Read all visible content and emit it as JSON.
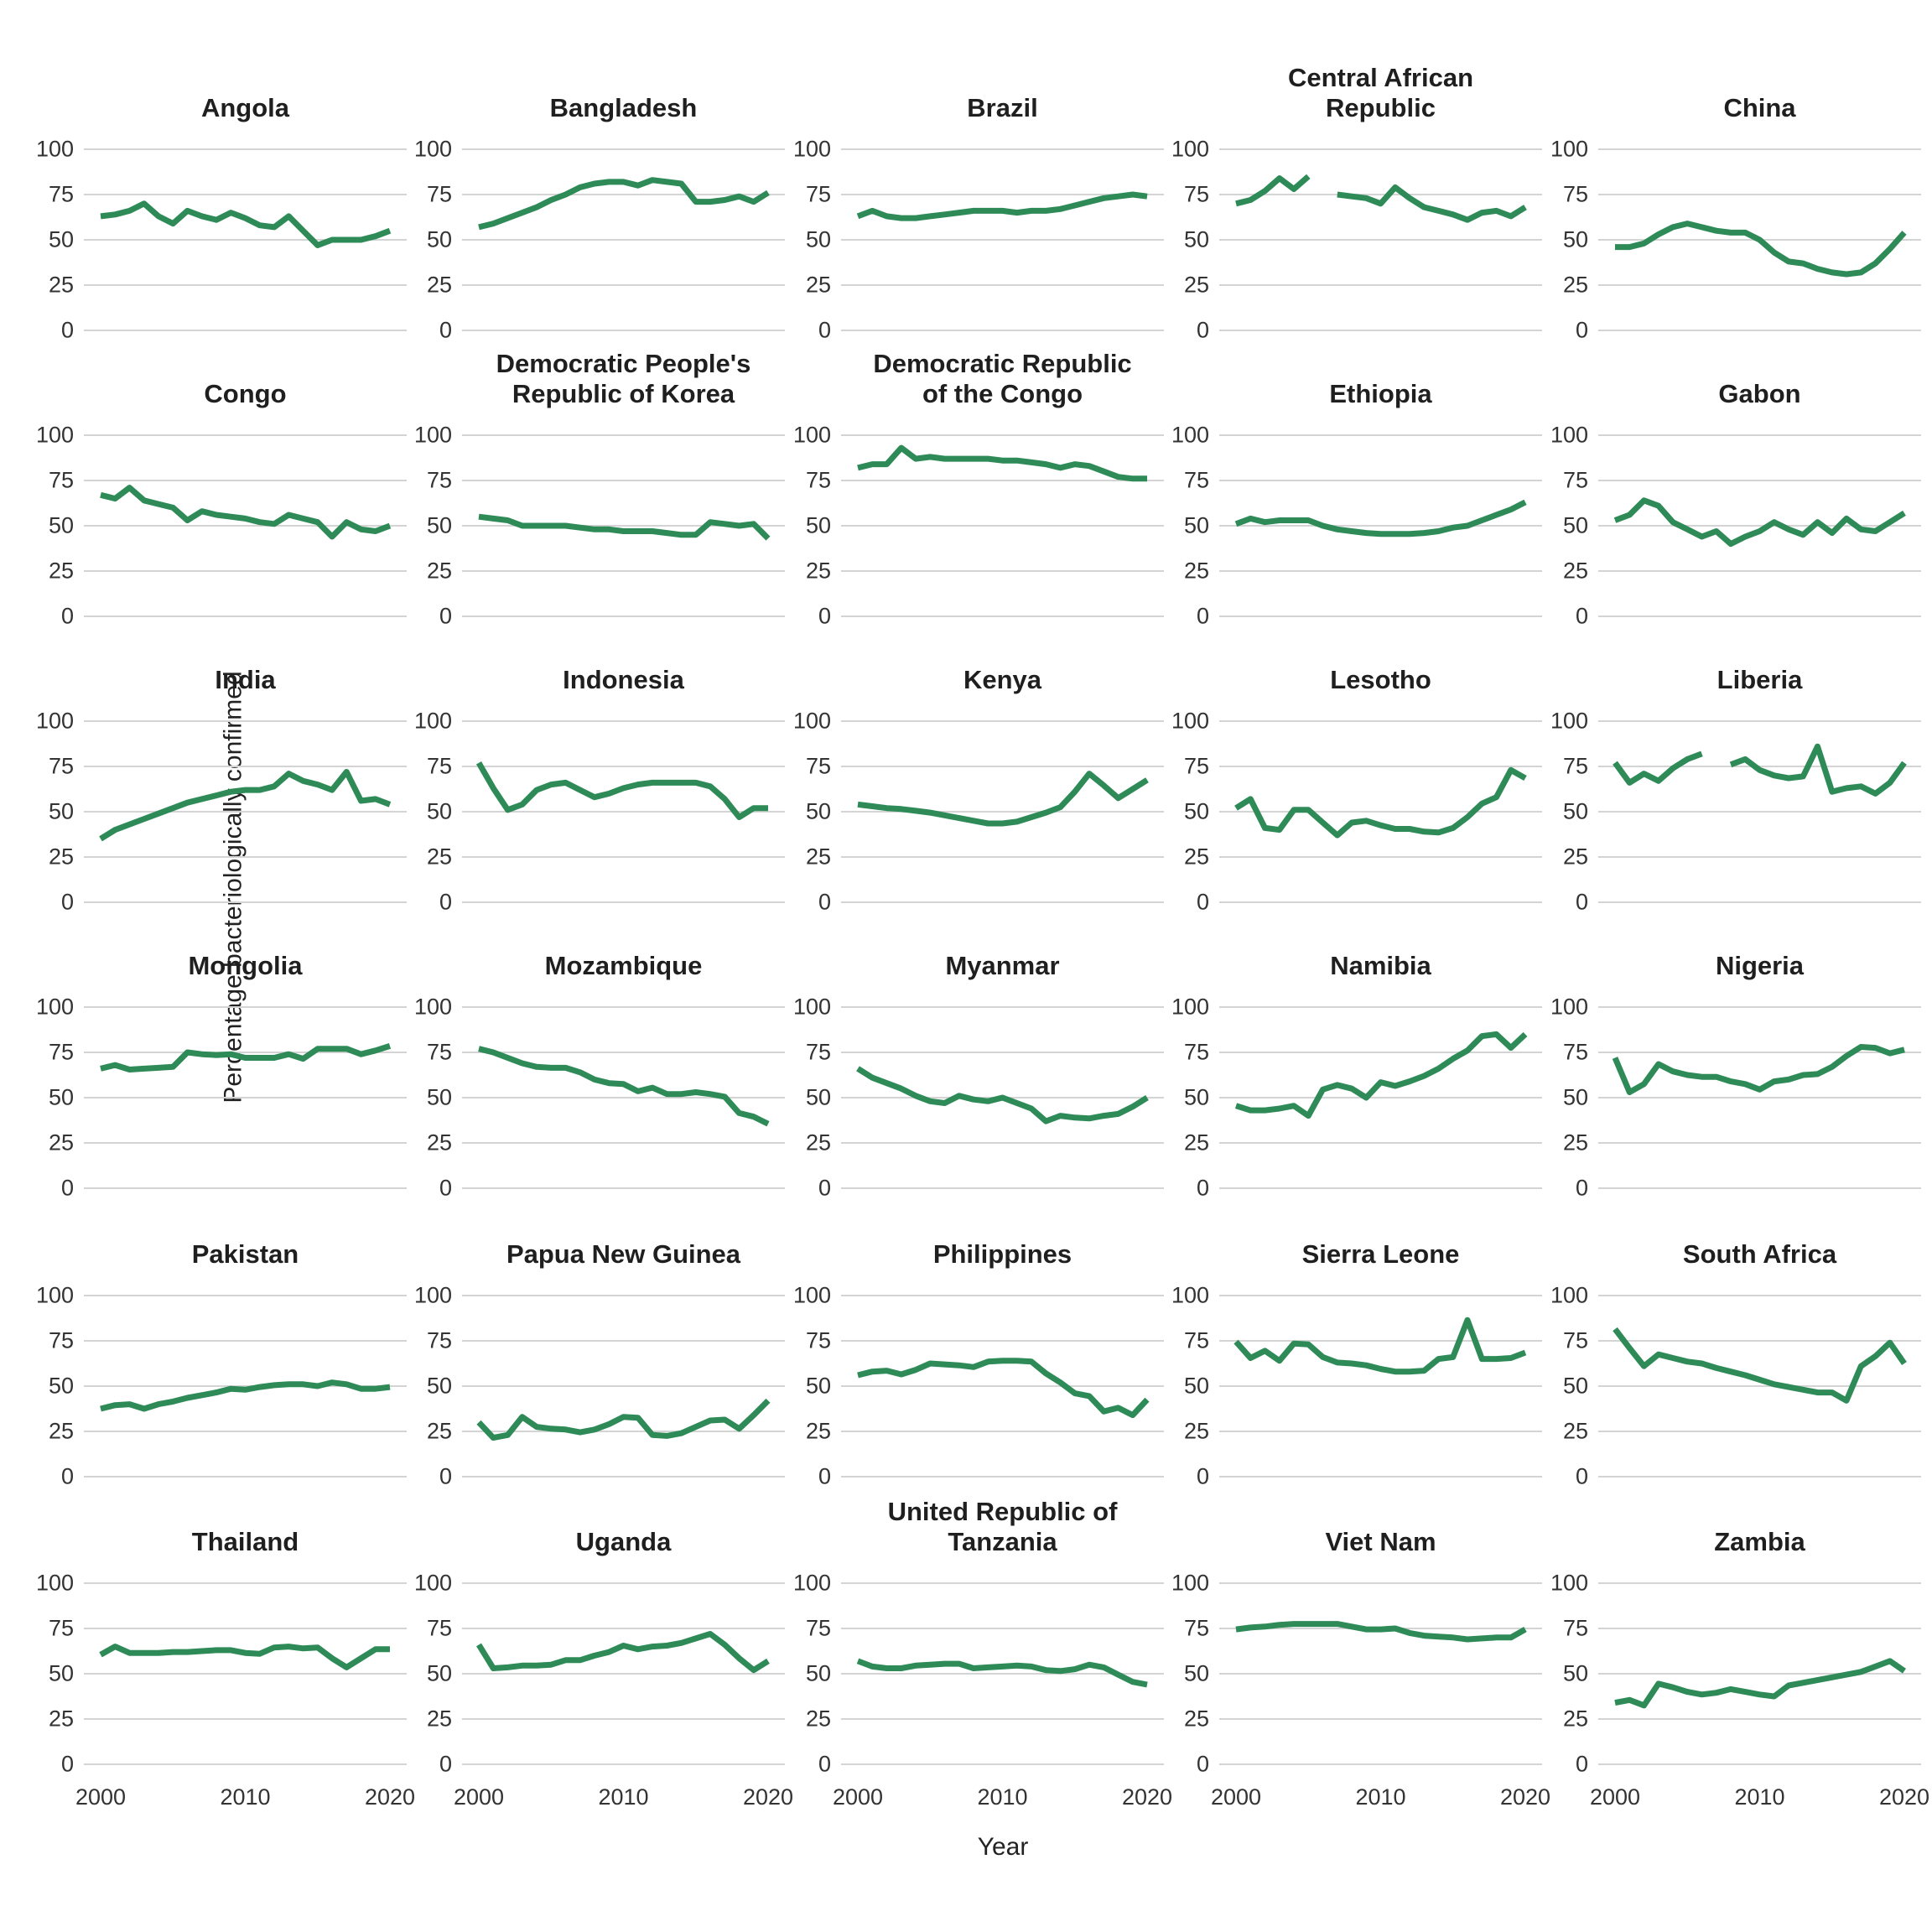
{
  "axes": {
    "y_title": "Percentage bacteriologically confirmed",
    "x_title": "Year",
    "y_tick_labels": [
      "100",
      "75",
      "50",
      "25",
      "0"
    ],
    "x_tick_labels": [
      "2000",
      "2010",
      "2020"
    ]
  },
  "styles": {
    "line_color": "#2e8b57",
    "grid_color": "#d4d4d4",
    "title_color": "#1f1f1f",
    "tick_color": "#333333",
    "background": "#ffffff"
  },
  "chart_data": {
    "type": "line",
    "grid": "horizontal gridlines at 0,25,50,75,100; no vertical gridlines; no legend",
    "ylim": [
      0,
      100
    ],
    "x_ticks": [
      2000,
      2010,
      2020
    ],
    "y_ticks": [
      100,
      75,
      50,
      25,
      0
    ],
    "x": [
      2000,
      2001,
      2002,
      2003,
      2004,
      2005,
      2006,
      2007,
      2008,
      2009,
      2010,
      2011,
      2012,
      2013,
      2014,
      2015,
      2016,
      2017,
      2018,
      2019,
      2020
    ],
    "facets": [
      {
        "title": "Angola",
        "values": [
          63,
          64,
          66,
          70,
          63,
          59,
          66,
          63,
          61,
          65,
          62,
          58,
          57,
          63,
          55,
          47,
          50,
          50,
          50,
          52,
          55
        ]
      },
      {
        "title": "Bangladesh",
        "values": [
          57,
          59,
          62,
          65,
          68,
          72,
          75,
          79,
          81,
          82,
          82,
          80,
          83,
          82,
          81,
          71,
          71,
          72,
          74,
          71,
          76
        ]
      },
      {
        "title": "Brazil",
        "values": [
          63,
          66,
          63,
          62,
          62,
          63,
          64,
          65,
          66,
          66,
          66,
          65,
          66,
          66,
          67,
          69,
          71,
          73,
          74,
          75,
          74
        ]
      },
      {
        "title": "Central African\nRepublic",
        "values": [
          70,
          72,
          77,
          84,
          78,
          85,
          null,
          75,
          74,
          73,
          70,
          79,
          73,
          68,
          66,
          64,
          61,
          65,
          66,
          63,
          68
        ]
      },
      {
        "title": "China",
        "values": [
          46,
          46,
          48,
          53,
          57,
          59,
          57,
          55,
          54,
          54,
          50,
          43,
          38,
          37,
          34,
          32,
          31,
          32,
          37,
          45,
          54
        ]
      },
      {
        "title": "Congo",
        "values": [
          67,
          65,
          71,
          64,
          62,
          60,
          53,
          58,
          56,
          55,
          54,
          52,
          51,
          56,
          54,
          52,
          44,
          52,
          48,
          47,
          50
        ]
      },
      {
        "title": "Democratic People's\nRepublic of Korea",
        "values": [
          55,
          54,
          53,
          50,
          50,
          50,
          50,
          49,
          48,
          48,
          47,
          47,
          47,
          46,
          45,
          45,
          52,
          51,
          50,
          51,
          43
        ]
      },
      {
        "title": "Democratic Republic\nof the Congo",
        "values": [
          82,
          84,
          84,
          93,
          87,
          88,
          87,
          87,
          87,
          87,
          86,
          86,
          85,
          84,
          82,
          84,
          83,
          80,
          77,
          76,
          76
        ]
      },
      {
        "title": "Ethiopia",
        "values": [
          51,
          54,
          52,
          53,
          53,
          53,
          50,
          48,
          47,
          46,
          45.5,
          45.5,
          45.5,
          46,
          47,
          49,
          50,
          53,
          56,
          59,
          63
        ]
      },
      {
        "title": "Gabon",
        "values": [
          53,
          56,
          64,
          61,
          52,
          48,
          44,
          47,
          40,
          44,
          47,
          52,
          48,
          45,
          52,
          46,
          54,
          48,
          47,
          52,
          57
        ]
      },
      {
        "title": "India",
        "values": [
          35,
          40,
          43,
          46,
          49,
          52,
          55,
          57,
          59,
          61,
          62,
          62,
          64,
          71,
          67,
          65,
          62,
          72,
          56,
          57,
          54
        ]
      },
      {
        "title": "Indonesia",
        "values": [
          77,
          63,
          51,
          54,
          62,
          65,
          66,
          62,
          58,
          60,
          63,
          65,
          66,
          66,
          66,
          66,
          64,
          57,
          47,
          52,
          52
        ]
      },
      {
        "title": "Kenya",
        "values": [
          54,
          53,
          52,
          51.5,
          50.5,
          49.5,
          48,
          46.5,
          45,
          43.5,
          43.5,
          44.5,
          47,
          49.5,
          52.5,
          61,
          71,
          64.5,
          57.5,
          62.5,
          67.5
        ]
      },
      {
        "title": "Lesotho",
        "values": [
          52,
          57,
          41,
          40,
          51,
          51,
          44,
          37,
          44,
          45,
          42.5,
          40.5,
          40.5,
          39,
          38.5,
          41,
          47,
          54.5,
          58,
          73,
          68.5
        ]
      },
      {
        "title": "Liberia",
        "values": [
          77,
          66,
          71,
          67,
          74,
          79,
          82,
          null,
          76,
          79,
          73,
          70,
          68.5,
          69.5,
          86,
          61,
          63,
          64,
          60,
          66,
          77
        ]
      },
      {
        "title": "Mongolia",
        "values": [
          66,
          68,
          65.5,
          66,
          66.5,
          67,
          75,
          74,
          73.5,
          74,
          72,
          72,
          72,
          74,
          71.5,
          77,
          77,
          77,
          74,
          76,
          78.5
        ]
      },
      {
        "title": "Mozambique",
        "values": [
          77,
          75,
          72,
          69,
          67,
          66.5,
          66.5,
          64,
          60,
          58,
          57.5,
          53.5,
          55.5,
          52,
          52,
          53,
          52,
          50.5,
          41.5,
          39.5,
          35.5
        ]
      },
      {
        "title": "Myanmar",
        "values": [
          66,
          61,
          58,
          55,
          51,
          48,
          47,
          51,
          49,
          48,
          50,
          47,
          44,
          37,
          40,
          39,
          38.5,
          40,
          41,
          45,
          50
        ]
      },
      {
        "title": "Namibia",
        "values": [
          45.5,
          43,
          43,
          44,
          45.5,
          40,
          54.5,
          57,
          55,
          50,
          58.5,
          56.5,
          59,
          62,
          66,
          71.5,
          76,
          84,
          85,
          77.5,
          85
        ]
      },
      {
        "title": "Nigeria",
        "values": [
          72,
          53,
          57.5,
          68.5,
          64.5,
          62.5,
          61.5,
          61.5,
          59,
          57.5,
          54.5,
          59,
          60,
          62.5,
          63,
          67,
          73,
          78,
          77.5,
          74.5,
          76.5
        ]
      },
      {
        "title": "Pakistan",
        "values": [
          37.5,
          39.5,
          40,
          37.5,
          40,
          41.5,
          43.5,
          45,
          46.5,
          48.5,
          48,
          49.5,
          50.5,
          51,
          51,
          50,
          52,
          51,
          48.5,
          48.5,
          49.5
        ]
      },
      {
        "title": "Papua New Guinea",
        "values": [
          30,
          21.5,
          23,
          33,
          27.5,
          26.5,
          26,
          24.5,
          26,
          29,
          33,
          32.5,
          23,
          22.5,
          24,
          27.5,
          31,
          31.5,
          26.5,
          34,
          42
        ]
      },
      {
        "title": "Philippines",
        "values": [
          56,
          58,
          58.5,
          56.5,
          59,
          62.5,
          62,
          61.5,
          60.5,
          63.5,
          64,
          64,
          63.5,
          57,
          52,
          46,
          44.5,
          36,
          38,
          34,
          42.5
        ]
      },
      {
        "title": "Sierra Leone",
        "values": [
          74.5,
          65.5,
          69.5,
          64,
          73.5,
          73,
          66,
          63,
          62.5,
          61.5,
          59.5,
          58,
          58,
          58.5,
          65,
          66,
          86.5,
          65,
          65,
          65.5,
          68.5
        ]
      },
      {
        "title": "South Africa",
        "values": [
          81.5,
          71,
          61,
          67.5,
          65.5,
          63.5,
          62.5,
          60,
          58,
          56,
          53.5,
          51,
          49.5,
          48,
          46.5,
          46.5,
          42,
          61,
          66.5,
          74,
          62.5
        ]
      },
      {
        "title": "Thailand",
        "values": [
          60.5,
          65,
          61.5,
          61.5,
          61.5,
          62,
          62,
          62.5,
          63,
          63,
          61.5,
          61,
          64.5,
          65,
          64,
          64.5,
          58.5,
          53.5,
          58.5,
          63.5,
          63.5
        ]
      },
      {
        "title": "Uganda",
        "values": [
          66,
          53,
          53.5,
          54.5,
          54.5,
          55,
          57.5,
          57.5,
          60,
          62,
          65.5,
          63.5,
          65,
          65.5,
          67,
          69.5,
          72,
          66,
          58.5,
          52,
          57
        ]
      },
      {
        "title": "United Republic of\nTanzania",
        "values": [
          57,
          54,
          53,
          53,
          54.5,
          55,
          55.5,
          55.5,
          53,
          53.5,
          54,
          54.5,
          54,
          52,
          51.5,
          52.5,
          55,
          53.5,
          49.5,
          45.5,
          44
        ]
      },
      {
        "title": "Viet Nam",
        "values": [
          74.5,
          75.5,
          76,
          77,
          77.5,
          77.5,
          77.5,
          77.5,
          76,
          74.5,
          74.5,
          75,
          72.5,
          71,
          70.5,
          70,
          69,
          69.5,
          70,
          70,
          74.5
        ]
      },
      {
        "title": "Zambia",
        "values": [
          34,
          35.5,
          32.5,
          44.5,
          42.5,
          40,
          38.5,
          39.5,
          41.5,
          40,
          38.5,
          37.5,
          43.5,
          45,
          46.5,
          48,
          49.5,
          51,
          54,
          57,
          51.5
        ]
      }
    ]
  }
}
